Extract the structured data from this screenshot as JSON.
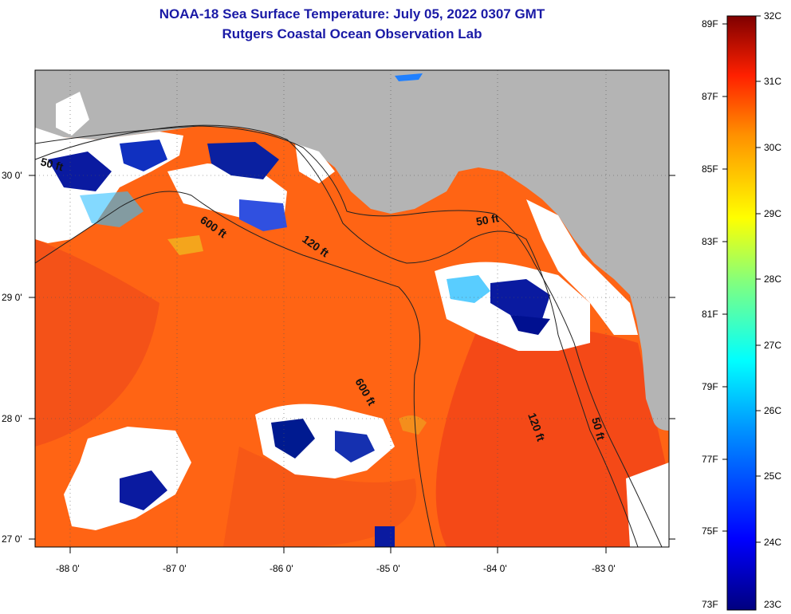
{
  "header": {
    "title": "NOAA-18 Sea Surface Temperature:  July 05, 2022 0307 GMT",
    "subtitle": "Rutgers Coastal Ocean Observation Lab"
  },
  "map": {
    "lat_labels": [
      "30 0'",
      "29 0'",
      "28 0'",
      "27 0'"
    ],
    "lon_labels": [
      "-88 0'",
      "-87 0'",
      "-86 0'",
      "-85 0'",
      "-84 0'",
      "-83 0'"
    ],
    "contour_labels": [
      "50 ft",
      "120 ft",
      "600 ft",
      "600 ft",
      "120 ft",
      "50 ft",
      "50 ft"
    ]
  },
  "colorbar": {
    "f_labels": [
      "89F",
      "87F",
      "85F",
      "83F",
      "81F",
      "79F",
      "77F",
      "75F",
      "73F"
    ],
    "c_labels": [
      "32C",
      "31C",
      "30C",
      "29C",
      "28C",
      "27C",
      "26C",
      "25C",
      "24C",
      "23C"
    ]
  },
  "colors": {
    "land": "#b4b4b4",
    "cloud": "#ffffff",
    "ocean_warm": "#ff6414",
    "ocean_hot": "#f03c14",
    "title": "#1a1aa6"
  }
}
